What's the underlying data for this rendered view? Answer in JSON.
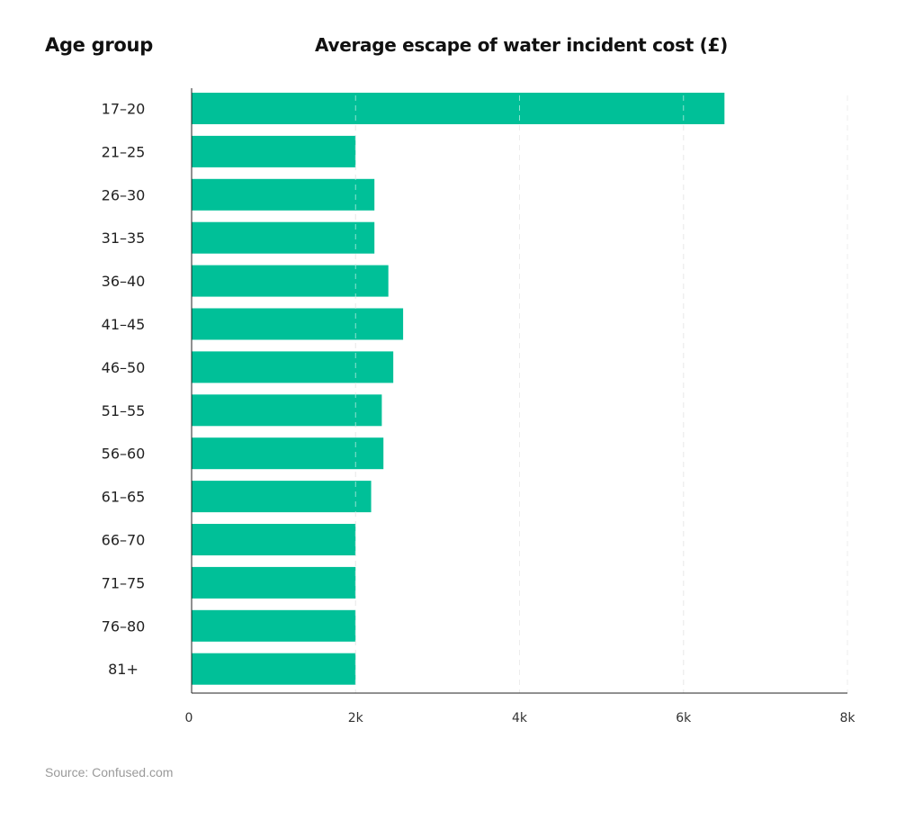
{
  "chart_data": {
    "type": "bar",
    "orientation": "horizontal",
    "title": "Average escape of water incident cost (£)",
    "ylabel": "Age group",
    "xlabel": "",
    "categories": [
      "17–20",
      "21–25",
      "26–30",
      "31–35",
      "36–40",
      "41–45",
      "46–50",
      "51–55",
      "56–60",
      "61–65",
      "66–70",
      "71–75",
      "76–80",
      "81+"
    ],
    "values": [
      6500,
      2000,
      2230,
      2230,
      2400,
      2580,
      2460,
      2320,
      2340,
      2190,
      2000,
      2000,
      2000,
      2000
    ],
    "xlim": [
      0,
      8000
    ],
    "xticks": [
      0,
      2000,
      4000,
      6000,
      8000
    ],
    "xtick_labels": [
      "0",
      "2k",
      "4k",
      "6k",
      "8k"
    ],
    "grid": "vertical dashed",
    "bar_color": "#00c098"
  },
  "source": "Source: Confused.com"
}
